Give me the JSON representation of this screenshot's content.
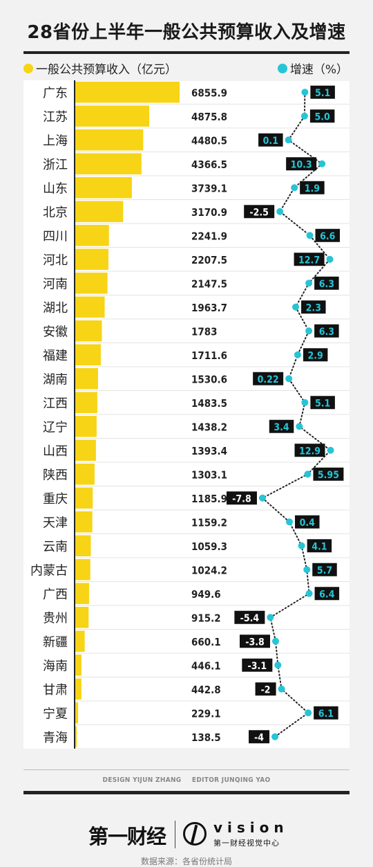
{
  "title": "28省份上半年一般公共预算收入及增速",
  "legend": {
    "revenue_label": "一般公共预算收入（亿元）",
    "growth_label": "增速（%）"
  },
  "colors": {
    "bar": "#f7d415",
    "dot": "#27c4d6",
    "growth_positive_text": "#27c4d6",
    "growth_label_bg": "#111111",
    "growth_negative_text": "#ffffff"
  },
  "chart_data": {
    "type": "bar",
    "categories": [
      "广东",
      "江苏",
      "上海",
      "浙江",
      "山东",
      "北京",
      "四川",
      "河北",
      "河南",
      "湖北",
      "安徽",
      "福建",
      "湖南",
      "江西",
      "辽宁",
      "山西",
      "陕西",
      "重庆",
      "天津",
      "云南",
      "内蒙古",
      "广西",
      "贵州",
      "新疆",
      "海南",
      "甘肃",
      "宁夏",
      "青海"
    ],
    "series": [
      {
        "name": "一般公共预算收入（亿元）",
        "values": [
          6855.9,
          4875.8,
          4480.5,
          4366.5,
          3739.1,
          3170.9,
          2241.9,
          2207.5,
          2147.5,
          1963.7,
          1783,
          1711.6,
          1530.6,
          1483.5,
          1438.2,
          1393.4,
          1303.1,
          1185.9,
          1159.2,
          1059.3,
          1024.2,
          949.6,
          915.2,
          660.1,
          446.1,
          442.8,
          229.1,
          138.5
        ],
        "labels": [
          "6855.9",
          "4875.8",
          "4480.5",
          "4366.5",
          "3739.1",
          "3170.9",
          "2241.9",
          "2207.5",
          "2147.5",
          "1963.7",
          "1783",
          "1711.6",
          "1530.6",
          "1483.5",
          "1438.2",
          "1393.4",
          "1303.1",
          "1185.9",
          "1159.2",
          "1059.3",
          "1024.2",
          "949.6",
          "915.2",
          "660.1",
          "446.1",
          "442.8",
          "229.1",
          "138.5"
        ]
      },
      {
        "name": "增速（%）",
        "values": [
          5.1,
          5.0,
          0.1,
          10.3,
          1.9,
          -2.5,
          6.6,
          12.7,
          6.3,
          2.3,
          6.3,
          2.9,
          0.22,
          5.1,
          3.4,
          12.9,
          5.95,
          -7.8,
          0.4,
          4.1,
          5.7,
          6.4,
          -5.4,
          -3.8,
          -3.1,
          -2,
          6.1,
          -4
        ],
        "labels": [
          "5.1",
          "5.0",
          "0.1",
          "10.3",
          "1.9",
          "-2.5",
          "6.6",
          "12.7",
          "6.3",
          "2.3",
          "6.3",
          "2.9",
          "0.22",
          "5.1",
          "3.4",
          "12.9",
          "5.95",
          "-7.8",
          "0.4",
          "4.1",
          "5.7",
          "6.4",
          "-5.4",
          "-3.8",
          "-3.1",
          "-2",
          "6.1",
          "-4"
        ],
        "label_side": [
          "right",
          "right",
          "left",
          "left",
          "right",
          "left",
          "right",
          "left",
          "right",
          "right",
          "right",
          "right",
          "left",
          "right",
          "left",
          "left",
          "right",
          "left",
          "right",
          "right",
          "right",
          "right",
          "left",
          "left",
          "left",
          "left",
          "right",
          "left"
        ]
      }
    ],
    "growth_xlim": [
      -8,
      13
    ],
    "grid": false,
    "legend_position": "top"
  },
  "footer": {
    "design_credit": "DESIGN YIJUN ZHANG",
    "editor_credit": "EDITOR JUNQING YAO",
    "brand_left": "第一财经",
    "brand_right": "vision",
    "brand_right_sub": "第一财经视觉中心",
    "source": "数据来源：各省份统计局"
  }
}
